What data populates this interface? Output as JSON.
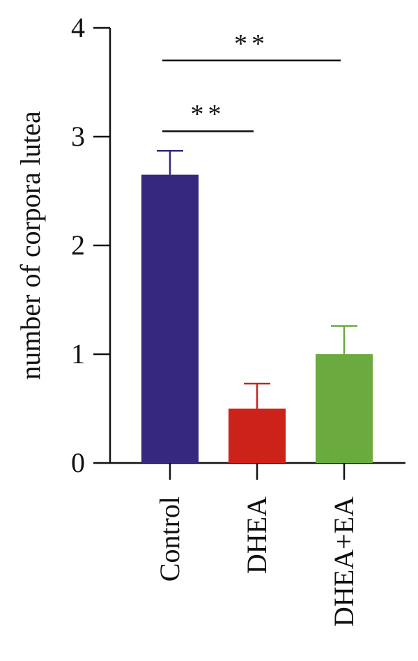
{
  "chart_data": {
    "type": "bar",
    "title": "",
    "xlabel": "",
    "ylabel": "number of corpora lutea",
    "ylim": [
      0,
      4
    ],
    "yticks": [
      "0",
      "1",
      "2",
      "3",
      "4"
    ],
    "categories": [
      "Control",
      "DHEA",
      "DHEA+EA"
    ],
    "values": [
      2.65,
      0.5,
      1.0
    ],
    "errors": [
      0.22,
      0.23,
      0.26
    ],
    "colors": [
      "#35287d",
      "#cc2219",
      "#6aaa3e"
    ],
    "grid": false,
    "significance": [
      {
        "from": "Control",
        "to": "DHEA",
        "label": "**",
        "y": 3.05
      },
      {
        "from": "Control",
        "to": "DHEA+EA",
        "label": "**",
        "y": 3.7
      }
    ]
  }
}
